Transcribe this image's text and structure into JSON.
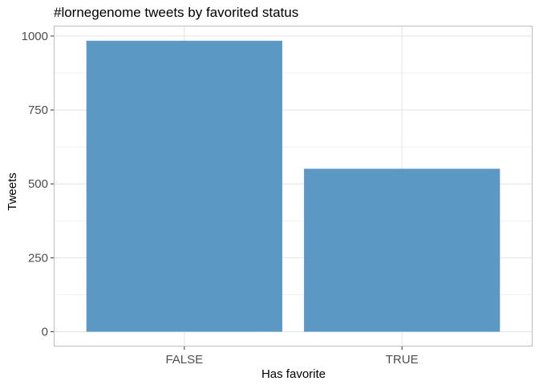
{
  "chart_data": {
    "type": "bar",
    "title": "#lornegenome tweets by favorited status",
    "xlabel": "Has favorite",
    "ylabel": "Tweets",
    "categories": [
      "FALSE",
      "TRUE"
    ],
    "values": [
      984,
      551
    ],
    "ylim": [
      -50,
      1035
    ],
    "yticks": [
      0,
      250,
      500,
      750,
      1000
    ],
    "grid": true,
    "legend": "none",
    "colors": {
      "bar": "#5b98c4",
      "grid_major": "#e3e3e3",
      "grid_minor": "#f1f1f1",
      "panel_border": "#bdbdbd",
      "tick_label": "#4d4d4d"
    }
  }
}
